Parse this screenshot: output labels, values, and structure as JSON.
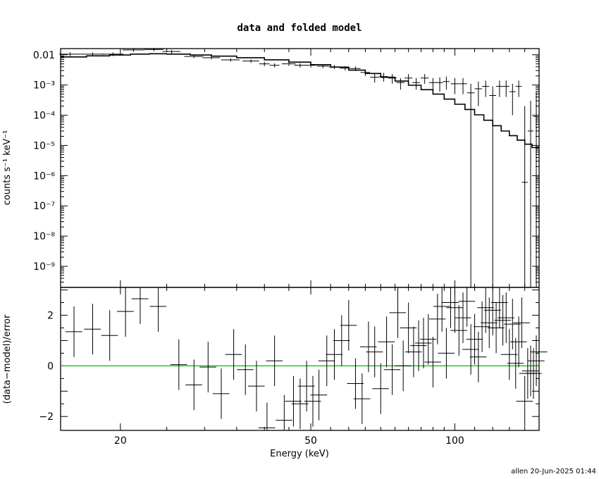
{
  "chart_data": [
    {
      "type": "line",
      "title": "data and folded model",
      "ylabel": "counts s⁻¹ keV⁻¹",
      "scale": "log-log",
      "xlim": [
        15,
        150
      ],
      "ylim": [
        2e-10,
        0.016
      ],
      "ytick_labels": [
        "0.01",
        "10⁻³",
        "10⁻⁴",
        "10⁻⁵",
        "10⁻⁶",
        "10⁻⁷",
        "10⁻⁸",
        "10⁻⁹"
      ],
      "ytick_values": [
        0.01,
        0.001,
        0.0001,
        1e-05,
        1e-06,
        1e-07,
        1e-08,
        1e-09
      ],
      "series": [
        {
          "kind": "data-with-errors",
          "x": [
            15.7,
            17.5,
            19.3,
            21.3,
            23.5,
            25.6,
            28.5,
            31.0,
            34.0,
            37.5,
            40.0,
            42.0,
            45.0,
            47.5,
            50.0,
            53.0,
            56.0,
            59.0,
            62.0,
            65.0,
            68.0,
            71.0,
            74.0,
            77.0,
            80.0,
            83.0,
            86.5,
            90.0,
            93.0,
            96.0,
            100.0,
            104.0,
            108.0,
            112.0,
            116.0,
            120.0,
            124.0,
            128.0,
            132.0,
            136.0,
            140.0,
            144.0,
            148.0
          ],
          "y": [
            0.0105,
            0.0105,
            0.0105,
            0.0145,
            0.015,
            0.0128,
            0.0088,
            0.008,
            0.0068,
            0.0062,
            0.005,
            0.0045,
            0.005,
            0.0045,
            0.0045,
            0.0042,
            0.004,
            0.0036,
            0.0035,
            0.0026,
            0.0018,
            0.0019,
            0.0017,
            0.0012,
            0.0017,
            0.0012,
            0.0017,
            0.0012,
            0.0012,
            0.0013,
            0.0011,
            0.0011,
            0.00055,
            0.00075,
            0.0009,
            0.00045,
            0.0009,
            0.0009,
            0.0006,
            0.0009,
            6e-07,
            3e-05,
            9e-05
          ],
          "xerr": [
            0.8,
            1.0,
            1.0,
            1.1,
            1.1,
            1.1,
            1.3,
            1.3,
            1.5,
            1.5,
            1.0,
            1.0,
            1.5,
            1.3,
            1.3,
            1.5,
            1.5,
            1.5,
            1.5,
            1.5,
            1.5,
            1.5,
            1.5,
            1.5,
            1.5,
            1.5,
            1.7,
            1.7,
            1.5,
            1.5,
            2.0,
            2.0,
            2.0,
            2.0,
            2.0,
            2.0,
            2.0,
            2.0,
            2.0,
            2.0,
            2.0,
            2.0,
            2.0
          ],
          "ylo": [
            0.009,
            0.009,
            0.009,
            0.0125,
            0.013,
            0.011,
            0.0078,
            0.007,
            0.006,
            0.0054,
            0.0042,
            0.0038,
            0.0043,
            0.0038,
            0.0038,
            0.0036,
            0.0034,
            0.003,
            0.0029,
            0.002,
            0.0012,
            0.0013,
            0.0011,
            0.0007,
            0.0011,
            0.0007,
            0.0011,
            0.0007,
            0.0006,
            0.0007,
            0.0005,
            0.0005,
            1e-10,
            0.0002,
            0.0004,
            1e-10,
            0.0004,
            0.0004,
            0.0001,
            0.0004,
            1e-10,
            1e-10,
            1e-10
          ],
          "yhi": [
            0.012,
            0.012,
            0.012,
            0.0165,
            0.017,
            0.0146,
            0.0098,
            0.009,
            0.0076,
            0.007,
            0.0058,
            0.0052,
            0.0057,
            0.0052,
            0.0052,
            0.0048,
            0.0046,
            0.0042,
            0.0041,
            0.0032,
            0.0024,
            0.0025,
            0.0023,
            0.0017,
            0.0023,
            0.0017,
            0.0023,
            0.0017,
            0.0018,
            0.0019,
            0.0017,
            0.0017,
            0.0011,
            0.0013,
            0.0014,
            0.0009,
            0.0014,
            0.0014,
            0.0011,
            0.0014,
            0.0002,
            0.0003,
            0.0006
          ]
        },
        {
          "kind": "folded-model-step",
          "x": [
            15.0,
            17.0,
            19.0,
            21.0,
            23.0,
            25.0,
            28.0,
            31.0,
            35.0,
            40.0,
            45.0,
            50.0,
            55.0,
            60.0,
            65.0,
            70.0,
            75.0,
            80.0,
            85.0,
            90.0,
            95.0,
            100.0,
            105.0,
            110.0,
            115.0,
            120.0,
            125.0,
            130.0,
            135.0,
            140.0,
            145.0,
            150.0
          ],
          "y": [
            0.0085,
            0.0092,
            0.0098,
            0.0105,
            0.0108,
            0.0105,
            0.0098,
            0.009,
            0.008,
            0.0068,
            0.0057,
            0.0047,
            0.0039,
            0.0031,
            0.0024,
            0.0018,
            0.00135,
            0.00098,
            0.0007,
            0.0005,
            0.00034,
            0.00023,
            0.000155,
            0.000103,
            6.8e-05,
            4.5e-05,
            3e-05,
            2.1e-05,
            1.5e-05,
            1.1e-05,
            8.5e-06,
            7.5e-06
          ]
        }
      ]
    },
    {
      "type": "scatter",
      "xlabel": "Energy (keV)",
      "ylabel": "(data−model)/error",
      "scale": "log-x",
      "xlim": [
        15,
        150
      ],
      "ylim": [
        -2.55,
        3.1
      ],
      "xtick_labels": [
        "20",
        "50",
        "100"
      ],
      "xtick_values": [
        20,
        50,
        100
      ],
      "ytick_labels": [
        "2",
        "0",
        "−2"
      ],
      "ytick_values": [
        2,
        0,
        -2
      ],
      "zero_line_color": "#00c000",
      "series": [
        {
          "kind": "residuals",
          "x": [
            16.0,
            17.5,
            19.0,
            20.5,
            22.0,
            24.0,
            26.5,
            28.5,
            30.5,
            32.5,
            34.5,
            36.5,
            38.5,
            40.5,
            42.0,
            44.0,
            46.0,
            47.5,
            49.0,
            50.5,
            52.0,
            54.0,
            56.0,
            58.0,
            60.0,
            62.0,
            64.0,
            66.0,
            68.0,
            70.0,
            72.0,
            74.0,
            76.0,
            78.0,
            80.0,
            82.0,
            84.0,
            86.0,
            88.0,
            90.0,
            92.0,
            94.0,
            96.0,
            98.0,
            100.0,
            102.0,
            104.0,
            106.0,
            108.0,
            110.0,
            112.0,
            114.0,
            116.0,
            118.0,
            120.0,
            122.0,
            124.0,
            126.0,
            128.0,
            130.0,
            132.0,
            134.0,
            136.0,
            138.0,
            140.0,
            142.0,
            144.0,
            146.0,
            148.0,
            150.0
          ],
          "y": [
            1.35,
            1.45,
            1.2,
            2.15,
            2.65,
            2.35,
            0.05,
            -0.75,
            -0.05,
            -1.1,
            0.45,
            -0.15,
            -0.8,
            -2.45,
            0.2,
            -2.15,
            -1.4,
            -1.5,
            -0.8,
            -1.4,
            -1.15,
            0.2,
            0.45,
            1.0,
            1.6,
            -0.7,
            -1.3,
            0.75,
            0.55,
            -0.9,
            0.95,
            -0.15,
            2.1,
            0.0,
            1.5,
            0.55,
            0.8,
            0.9,
            1.05,
            0.15,
            1.85,
            2.35,
            0.5,
            2.5,
            2.3,
            1.4,
            1.9,
            2.55,
            0.65,
            1.05,
            0.35,
            1.55,
            2.3,
            1.7,
            2.2,
            1.5,
            2.5,
            1.8,
            1.9,
            0.45,
            1.65,
            0.1,
            0.95,
            1.7,
            -1.4,
            -0.3,
            -0.2,
            -0.3,
            0.2,
            0.55
          ],
          "yerr": [
            1.0,
            1.0,
            1.0,
            1.0,
            1.0,
            1.0,
            1.0,
            1.0,
            1.0,
            1.0,
            1.0,
            1.0,
            1.0,
            1.0,
            1.0,
            1.0,
            1.0,
            1.0,
            1.0,
            1.0,
            1.0,
            1.0,
            1.0,
            1.0,
            1.0,
            1.0,
            1.0,
            1.0,
            1.0,
            1.0,
            1.0,
            1.0,
            1.0,
            1.0,
            1.0,
            1.0,
            1.0,
            1.0,
            1.0,
            1.0,
            1.0,
            1.0,
            1.0,
            1.0,
            1.0,
            1.0,
            1.0,
            1.0,
            1.0,
            1.0,
            1.0,
            1.0,
            1.0,
            1.0,
            1.0,
            1.0,
            1.0,
            1.0,
            1.0,
            1.0,
            1.0,
            1.0,
            1.0,
            1.0,
            1.0,
            1.0,
            1.0,
            1.0,
            1.0,
            1.0
          ]
        }
      ]
    }
  ],
  "footer": "allen 20-Jun-2025 01:44"
}
